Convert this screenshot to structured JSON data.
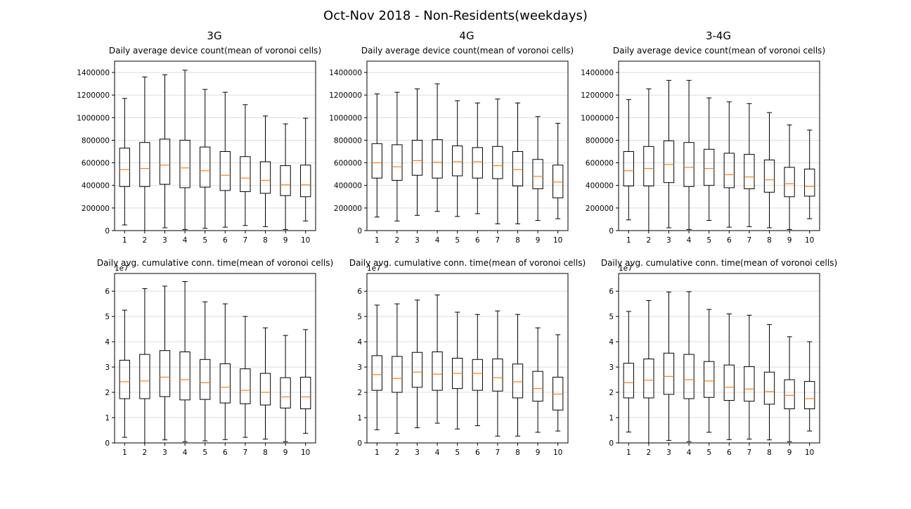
{
  "figure": {
    "title": "Oct-Nov 2018 - Non-Residents(weekdays)",
    "column_titles": [
      "3G",
      "4G",
      "3-4G"
    ]
  },
  "chart_data": [
    {
      "type": "boxplot",
      "network": "3G",
      "title": "Daily average device count(mean of voronoi cells)",
      "categories": [
        "1",
        "2",
        "3",
        "4",
        "5",
        "6",
        "7",
        "8",
        "9",
        "10"
      ],
      "ylim": [
        0,
        1500000
      ],
      "yticks": [
        0,
        200000,
        400000,
        600000,
        800000,
        1000000,
        1200000,
        1400000
      ],
      "ytick_labels": [
        "0",
        "200000",
        "400000",
        "600000",
        "800000",
        "1000000",
        "1200000",
        "1400000"
      ],
      "y_offset_label": "",
      "grid": "horizontal",
      "boxes": [
        {
          "whislo": 50000,
          "q1": 390000,
          "med": 540000,
          "q3": 730000,
          "whishi": 1170000
        },
        {
          "whislo": 0,
          "q1": 390000,
          "med": 550000,
          "q3": 780000,
          "whishi": 1360000
        },
        {
          "whislo": 25000,
          "q1": 410000,
          "med": 580000,
          "q3": 810000,
          "whishi": 1380000
        },
        {
          "whislo": 10000,
          "q1": 380000,
          "med": 555000,
          "q3": 800000,
          "whishi": 1420000
        },
        {
          "whislo": 20000,
          "q1": 385000,
          "med": 530000,
          "q3": 740000,
          "whishi": 1250000
        },
        {
          "whislo": 30000,
          "q1": 355000,
          "med": 490000,
          "q3": 700000,
          "whishi": 1225000
        },
        {
          "whislo": 45000,
          "q1": 345000,
          "med": 465000,
          "q3": 655000,
          "whishi": 1115000
        },
        {
          "whislo": 35000,
          "q1": 330000,
          "med": 445000,
          "q3": 610000,
          "whishi": 1015000
        },
        {
          "whislo": 10000,
          "q1": 310000,
          "med": 405000,
          "q3": 575000,
          "whishi": 945000
        },
        {
          "whislo": 85000,
          "q1": 300000,
          "med": 405000,
          "q3": 580000,
          "whishi": 995000
        }
      ]
    },
    {
      "type": "boxplot",
      "network": "4G",
      "title": "Daily average device count(mean of voronoi cells)",
      "categories": [
        "1",
        "2",
        "3",
        "4",
        "5",
        "6",
        "7",
        "8",
        "9",
        "10"
      ],
      "ylim": [
        0,
        1500000
      ],
      "yticks": [
        0,
        200000,
        400000,
        600000,
        800000,
        1000000,
        1200000,
        1400000
      ],
      "ytick_labels": [
        "0",
        "200000",
        "400000",
        "600000",
        "800000",
        "1000000",
        "1200000",
        "1400000"
      ],
      "y_offset_label": "",
      "grid": "horizontal",
      "boxes": [
        {
          "whislo": 120000,
          "q1": 465000,
          "med": 600000,
          "q3": 770000,
          "whishi": 1210000
        },
        {
          "whislo": 85000,
          "q1": 445000,
          "med": 565000,
          "q3": 760000,
          "whishi": 1225000
        },
        {
          "whislo": 135000,
          "q1": 490000,
          "med": 620000,
          "q3": 800000,
          "whishi": 1255000
        },
        {
          "whislo": 170000,
          "q1": 465000,
          "med": 605000,
          "q3": 805000,
          "whishi": 1300000
        },
        {
          "whislo": 125000,
          "q1": 485000,
          "med": 610000,
          "q3": 750000,
          "whishi": 1150000
        },
        {
          "whislo": 150000,
          "q1": 465000,
          "med": 610000,
          "q3": 735000,
          "whishi": 1130000
        },
        {
          "whislo": 60000,
          "q1": 460000,
          "med": 575000,
          "q3": 745000,
          "whishi": 1165000
        },
        {
          "whislo": 60000,
          "q1": 395000,
          "med": 540000,
          "q3": 700000,
          "whishi": 1130000
        },
        {
          "whislo": 90000,
          "q1": 370000,
          "med": 480000,
          "q3": 630000,
          "whishi": 1010000
        },
        {
          "whislo": 105000,
          "q1": 290000,
          "med": 430000,
          "q3": 580000,
          "whishi": 950000
        }
      ]
    },
    {
      "type": "boxplot",
      "network": "3-4G",
      "title": "Daily average device count(mean of voronoi cells)",
      "categories": [
        "1",
        "2",
        "3",
        "4",
        "5",
        "6",
        "7",
        "8",
        "9",
        "10"
      ],
      "ylim": [
        0,
        1500000
      ],
      "yticks": [
        0,
        200000,
        400000,
        600000,
        800000,
        1000000,
        1200000,
        1400000
      ],
      "ytick_labels": [
        "0",
        "200000",
        "400000",
        "600000",
        "800000",
        "1000000",
        "1200000",
        "1400000"
      ],
      "y_offset_label": "",
      "grid": "horizontal",
      "boxes": [
        {
          "whislo": 95000,
          "q1": 395000,
          "med": 530000,
          "q3": 700000,
          "whishi": 1160000
        },
        {
          "whislo": 0,
          "q1": 395000,
          "med": 550000,
          "q3": 745000,
          "whishi": 1255000
        },
        {
          "whislo": 25000,
          "q1": 425000,
          "med": 585000,
          "q3": 795000,
          "whishi": 1330000
        },
        {
          "whislo": 10000,
          "q1": 390000,
          "med": 560000,
          "q3": 780000,
          "whishi": 1330000
        },
        {
          "whislo": 90000,
          "q1": 400000,
          "med": 550000,
          "q3": 720000,
          "whishi": 1175000
        },
        {
          "whislo": 30000,
          "q1": 380000,
          "med": 495000,
          "q3": 685000,
          "whishi": 1140000
        },
        {
          "whislo": 35000,
          "q1": 370000,
          "med": 475000,
          "q3": 675000,
          "whishi": 1125000
        },
        {
          "whislo": 25000,
          "q1": 340000,
          "med": 450000,
          "q3": 625000,
          "whishi": 1045000
        },
        {
          "whislo": 10000,
          "q1": 300000,
          "med": 415000,
          "q3": 560000,
          "whishi": 935000
        },
        {
          "whislo": 105000,
          "q1": 305000,
          "med": 390000,
          "q3": 545000,
          "whishi": 890000
        }
      ]
    },
    {
      "type": "boxplot",
      "network": "3G",
      "title": "Daily avg. cumulative conn. time(mean of voronoi cells)",
      "categories": [
        "1",
        "2",
        "3",
        "4",
        "5",
        "6",
        "7",
        "8",
        "9",
        "10"
      ],
      "ylim": [
        0,
        6.7
      ],
      "yticks": [
        0,
        1,
        2,
        3,
        4,
        5,
        6
      ],
      "ytick_labels": [
        "0",
        "1",
        "2",
        "3",
        "4",
        "5",
        "6"
      ],
      "y_offset_label": "1e7",
      "grid": "horizontal",
      "boxes": [
        {
          "whislo": 0.22,
          "q1": 1.75,
          "med": 2.42,
          "q3": 3.27,
          "whishi": 5.25
        },
        {
          "whislo": 0.0,
          "q1": 1.75,
          "med": 2.45,
          "q3": 3.5,
          "whishi": 6.1
        },
        {
          "whislo": 0.12,
          "q1": 1.83,
          "med": 2.6,
          "q3": 3.65,
          "whishi": 6.2
        },
        {
          "whislo": 0.05,
          "q1": 1.7,
          "med": 2.5,
          "q3": 3.6,
          "whishi": 6.38
        },
        {
          "whislo": 0.08,
          "q1": 1.72,
          "med": 2.38,
          "q3": 3.3,
          "whishi": 5.58
        },
        {
          "whislo": 0.13,
          "q1": 1.58,
          "med": 2.2,
          "q3": 3.13,
          "whishi": 5.5
        },
        {
          "whislo": 0.22,
          "q1": 1.55,
          "med": 2.08,
          "q3": 2.93,
          "whishi": 5.0
        },
        {
          "whislo": 0.15,
          "q1": 1.5,
          "med": 2.0,
          "q3": 2.75,
          "whishi": 4.55
        },
        {
          "whislo": 0.05,
          "q1": 1.38,
          "med": 1.82,
          "q3": 2.58,
          "whishi": 4.25
        },
        {
          "whislo": 0.38,
          "q1": 1.35,
          "med": 1.82,
          "q3": 2.6,
          "whishi": 4.48
        }
      ]
    },
    {
      "type": "boxplot",
      "network": "4G",
      "title": "Daily avg. cumulative conn. time(mean of voronoi cells)",
      "categories": [
        "1",
        "2",
        "3",
        "4",
        "5",
        "6",
        "7",
        "8",
        "9",
        "10"
      ],
      "ylim": [
        0,
        6.7
      ],
      "yticks": [
        0,
        1,
        2,
        3,
        4,
        5,
        6
      ],
      "ytick_labels": [
        "0",
        "1",
        "2",
        "3",
        "4",
        "5",
        "6"
      ],
      "y_offset_label": "1e7",
      "grid": "horizontal",
      "boxes": [
        {
          "whislo": 0.52,
          "q1": 2.08,
          "med": 2.7,
          "q3": 3.45,
          "whishi": 5.45
        },
        {
          "whislo": 0.38,
          "q1": 2.0,
          "med": 2.55,
          "q3": 3.42,
          "whishi": 5.5
        },
        {
          "whislo": 0.6,
          "q1": 2.2,
          "med": 2.8,
          "q3": 3.58,
          "whishi": 5.65
        },
        {
          "whislo": 0.78,
          "q1": 2.08,
          "med": 2.72,
          "q3": 3.6,
          "whishi": 5.85
        },
        {
          "whislo": 0.55,
          "q1": 2.15,
          "med": 2.75,
          "q3": 3.35,
          "whishi": 5.17
        },
        {
          "whislo": 0.68,
          "q1": 2.08,
          "med": 2.75,
          "q3": 3.3,
          "whishi": 5.08
        },
        {
          "whislo": 0.27,
          "q1": 2.05,
          "med": 2.58,
          "q3": 3.32,
          "whishi": 5.22
        },
        {
          "whislo": 0.27,
          "q1": 1.78,
          "med": 2.42,
          "q3": 3.12,
          "whishi": 5.08
        },
        {
          "whislo": 0.42,
          "q1": 1.65,
          "med": 2.15,
          "q3": 2.83,
          "whishi": 4.55
        },
        {
          "whislo": 0.47,
          "q1": 1.3,
          "med": 1.93,
          "q3": 2.6,
          "whishi": 4.28
        }
      ]
    },
    {
      "type": "boxplot",
      "network": "3-4G",
      "title": "Daily avg. cumulative conn. time(mean of voronoi cells)",
      "categories": [
        "1",
        "2",
        "3",
        "4",
        "5",
        "6",
        "7",
        "8",
        "9",
        "10"
      ],
      "ylim": [
        0,
        6.7
      ],
      "yticks": [
        0,
        1,
        2,
        3,
        4,
        5,
        6
      ],
      "ytick_labels": [
        "0",
        "1",
        "2",
        "3",
        "4",
        "5",
        "6"
      ],
      "y_offset_label": "1e7",
      "grid": "horizontal",
      "boxes": [
        {
          "whislo": 0.43,
          "q1": 1.78,
          "med": 2.38,
          "q3": 3.15,
          "whishi": 5.2
        },
        {
          "whislo": 0.0,
          "q1": 1.78,
          "med": 2.48,
          "q3": 3.32,
          "whishi": 5.63
        },
        {
          "whislo": 0.1,
          "q1": 1.92,
          "med": 2.63,
          "q3": 3.55,
          "whishi": 5.97
        },
        {
          "whislo": 0.05,
          "q1": 1.75,
          "med": 2.5,
          "q3": 3.5,
          "whishi": 5.98
        },
        {
          "whislo": 0.42,
          "q1": 1.8,
          "med": 2.45,
          "q3": 3.22,
          "whishi": 5.28
        },
        {
          "whislo": 0.13,
          "q1": 1.68,
          "med": 2.2,
          "q3": 3.08,
          "whishi": 5.1
        },
        {
          "whislo": 0.15,
          "q1": 1.65,
          "med": 2.13,
          "q3": 3.02,
          "whishi": 5.05
        },
        {
          "whislo": 0.12,
          "q1": 1.53,
          "med": 2.03,
          "q3": 2.8,
          "whishi": 4.68
        },
        {
          "whislo": 0.05,
          "q1": 1.35,
          "med": 1.88,
          "q3": 2.5,
          "whishi": 4.2
        },
        {
          "whislo": 0.47,
          "q1": 1.35,
          "med": 1.75,
          "q3": 2.43,
          "whishi": 4.0
        }
      ]
    }
  ],
  "colors": {
    "box": "#000000",
    "median": "#ff7f0e",
    "grid": "#dddddd",
    "axes": "#000000"
  }
}
